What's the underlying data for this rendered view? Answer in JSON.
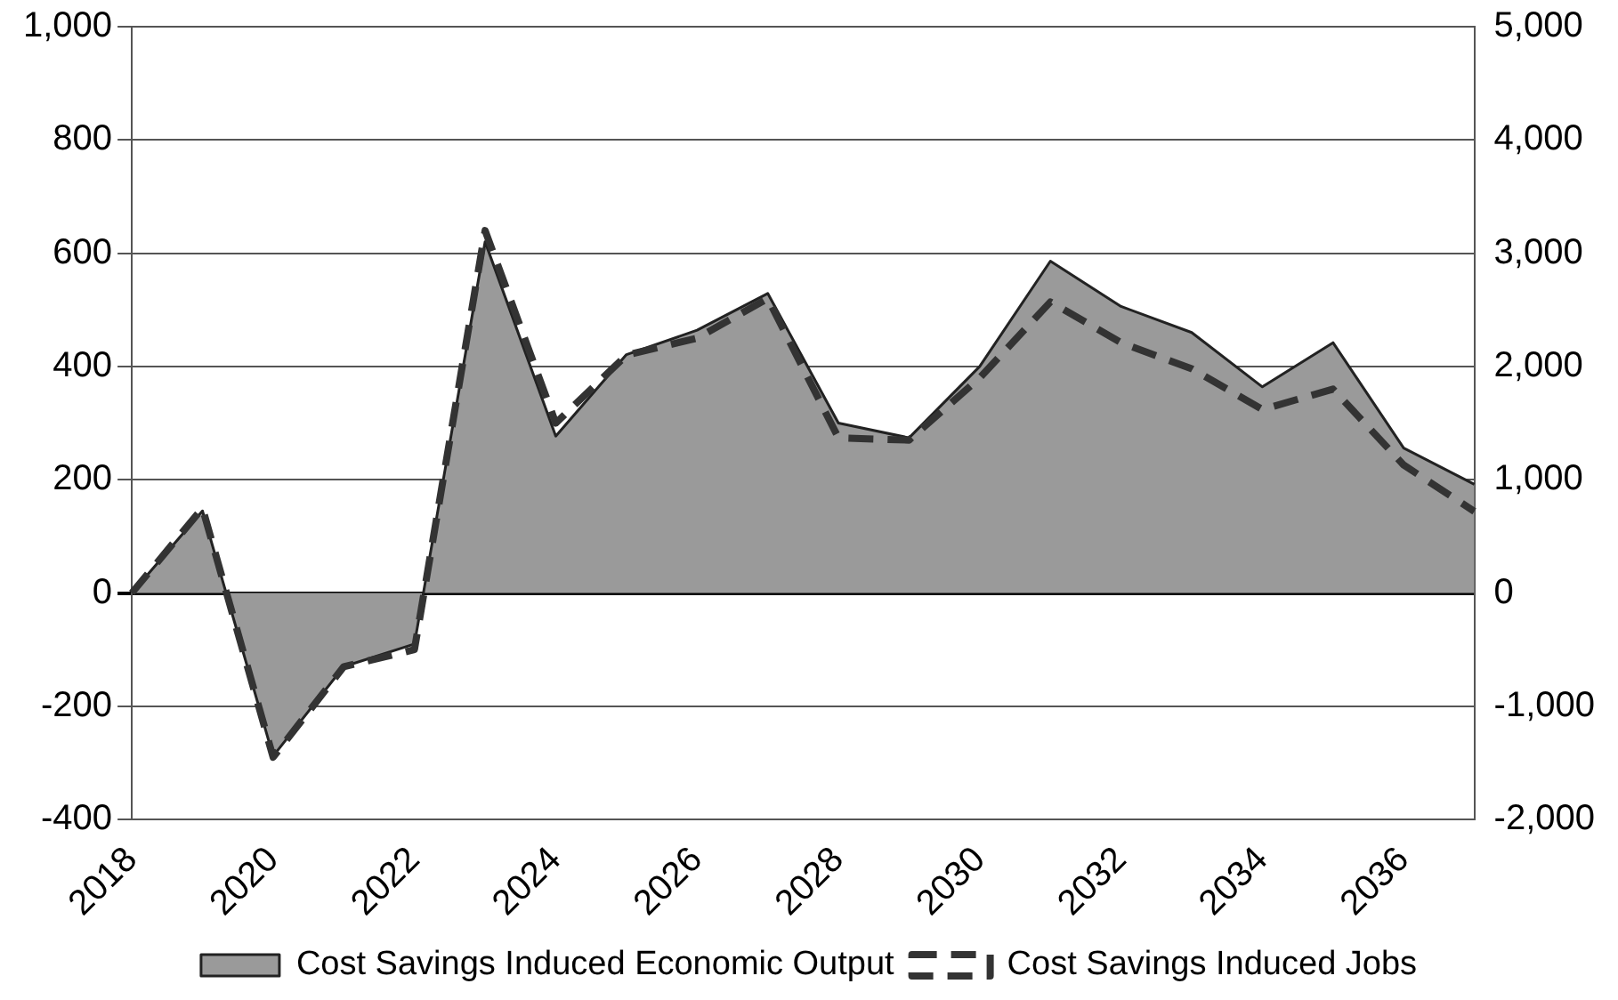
{
  "chart_data": {
    "type": "area",
    "categories": [
      "2018",
      null,
      "2020",
      null,
      "2022",
      null,
      "2024",
      null,
      "2026",
      null,
      "2028",
      null,
      "2030",
      null,
      "2032",
      null,
      "2034",
      null,
      "2036",
      null
    ],
    "series": [
      {
        "name": "Cost Savings Induced Economic Output",
        "color": "#9a9a9a",
        "values": [
          0,
          145,
          -288,
          -130,
          -90,
          620,
          277,
          421,
          464,
          529,
          300,
          274,
          400,
          586,
          506,
          460,
          364,
          442,
          256,
          192
        ]
      },
      {
        "name": "Cost Savings Induced Jobs",
        "type": "line",
        "axis": "y2",
        "color": "#333333",
        "line_style": "dashed",
        "values": [
          0,
          750,
          -1450,
          -650,
          -500,
          3200,
          1500,
          2100,
          2250,
          2600,
          1370,
          1350,
          1900,
          2570,
          2210,
          1980,
          1620,
          1800,
          1130,
          720
        ]
      }
    ],
    "ylim": [
      -400,
      1000
    ],
    "yticks": [
      -400,
      -200,
      0,
      200,
      400,
      600,
      800,
      {
        "value": 1000,
        "label": "1,000"
      }
    ],
    "y2lim": [
      -2000,
      5000
    ],
    "y2ticks": [
      {
        "value": -2000,
        "label": "-2,000"
      },
      {
        "value": -1000,
        "label": "-1,000"
      },
      0,
      {
        "value": 1000,
        "label": "1,000"
      },
      {
        "value": 2000,
        "label": "2,000"
      },
      {
        "value": 3000,
        "label": "3,000"
      },
      {
        "value": 4000,
        "label": "4,000"
      },
      {
        "value": 5000,
        "label": "5,000"
      }
    ],
    "grid": "y",
    "legend": "bottom",
    "marker": "none"
  }
}
